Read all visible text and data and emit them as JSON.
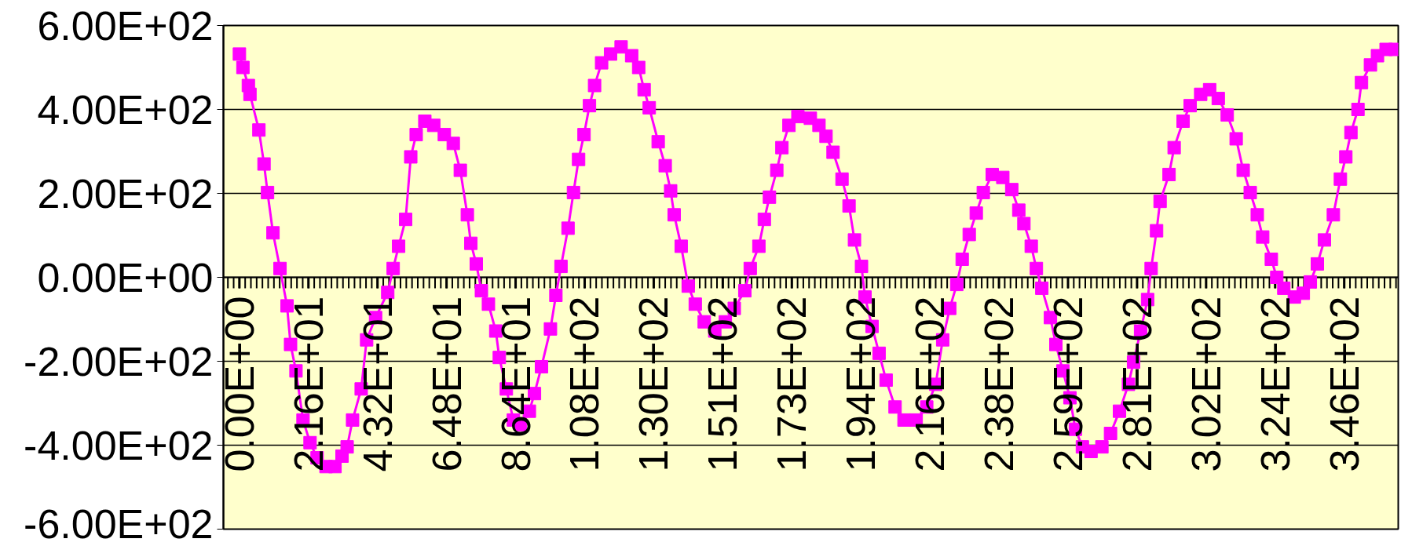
{
  "chart_data": {
    "type": "line",
    "color": "#ff00ff",
    "marker": "square",
    "line_style": "solid",
    "grid": "y",
    "x": [
      0,
      1.1,
      2.8,
      3.3,
      6.1,
      7.7,
      8.8,
      10.5,
      12.7,
      14.9,
      16.0,
      17.7,
      19.9,
      22.1,
      24.3,
      27.1,
      29.9,
      32.1,
      33.7,
      35.4,
      38.1,
      39.8,
      42.6,
      46.4,
      48.1,
      49.8,
      52.0,
      53.6,
      55.3,
      58.0,
      60.8,
      64.1,
      66.9,
      69.1,
      71.3,
      72.4,
      74.1,
      75.7,
      77.9,
      80.2,
      81.3,
      83.5,
      85.7,
      87.9,
      90.7,
      92.3,
      94.5,
      97.3,
      99.0,
      100.6,
      102.8,
      104.5,
      106.1,
      107.8,
      109.5,
      111.1,
      113.3,
      116.1,
      119.4,
      122.7,
      124.9,
      126.6,
      128.2,
      131.0,
      133.2,
      134.9,
      136.0,
      138.2,
      140.4,
      142.6,
      145.4,
      148.7,
      152.0,
      154.8,
      158.1,
      159.8,
      162.5,
      164.2,
      165.8,
      168.1,
      169.7,
      171.9,
      174.7,
      178.6,
      181.3,
      183.5,
      185.7,
      188.5,
      190.7,
      192.4,
      194.6,
      195.7,
      197.9,
      200.1,
      202.3,
      205.1,
      207.9,
      211.7,
      215.0,
      217.8,
      220.0,
      222.2,
      224.4,
      226.1,
      228.3,
      230.5,
      232.7,
      235.5,
      238.8,
      241.6,
      243.8,
      245.4,
      247.7,
      249.3,
      251.0,
      253.7,
      255.4,
      257.6,
      259.8,
      261.5,
      263.7,
      266.4,
      269.8,
      272.5,
      275.3,
      278.1,
      279.7,
      281.9,
      284.1,
      285.2,
      286.9,
      288.0,
      290.8,
      292.4,
      295.2,
      297.4,
      300.7,
      303.5,
      306.2,
      309.0,
      311.8,
      314.0,
      316.2,
      318.4,
      320.1,
      322.8,
      324.5,
      326.7,
      330.0,
      332.8,
      335.0,
      337.2,
      339.4,
      342.2,
      344.4,
      346.1,
      347.7,
      349.9,
      351.0,
      353.8,
      356.0,
      358.7,
      361.5
    ],
    "values": [
      532,
      500,
      457,
      436,
      351,
      270,
      202,
      106,
      21,
      -68,
      -160,
      -223,
      -340,
      -394,
      -430,
      -451,
      -451,
      -426,
      -404,
      -340,
      -266,
      -149,
      -96,
      -36,
      21,
      74,
      138,
      287,
      340,
      372,
      362,
      340,
      319,
      255,
      149,
      81,
      32,
      -32,
      -64,
      -128,
      -191,
      -266,
      -340,
      -351,
      -319,
      -277,
      -213,
      -123,
      -43,
      26,
      117,
      202,
      281,
      340,
      409,
      457,
      511,
      532,
      549,
      528,
      500,
      447,
      404,
      323,
      266,
      206,
      149,
      74,
      -21,
      -64,
      -106,
      -128,
      -106,
      -74,
      -32,
      21,
      74,
      138,
      191,
      255,
      309,
      362,
      383,
      379,
      362,
      336,
      298,
      234,
      170,
      89,
      26,
      -47,
      -117,
      -181,
      -245,
      -309,
      -340,
      -340,
      -309,
      -255,
      -149,
      -74,
      -17,
      43,
      102,
      153,
      202,
      245,
      238,
      209,
      160,
      128,
      74,
      21,
      -26,
      -96,
      -160,
      -223,
      -287,
      -362,
      -404,
      -415,
      -404,
      -372,
      -319,
      -255,
      -202,
      -128,
      -53,
      21,
      111,
      181,
      245,
      309,
      372,
      409,
      436,
      447,
      426,
      387,
      330,
      255,
      202,
      149,
      96,
      43,
      0,
      -26,
      -47,
      -38,
      -11,
      32,
      89,
      149,
      234,
      287,
      345,
      400,
      464,
      506,
      528,
      543,
      543
    ],
    "xlim": [
      -5,
      362.5
    ],
    "xticks": [
      {
        "value": 0,
        "label": "0.00E+00"
      },
      {
        "value": 21.6,
        "label": "2.16E+01"
      },
      {
        "value": 43.2,
        "label": "4.32E+01"
      },
      {
        "value": 64.8,
        "label": "6.48E+01"
      },
      {
        "value": 86.4,
        "label": "8.64E+01"
      },
      {
        "value": 108,
        "label": "1.08E+02"
      },
      {
        "value": 129.6,
        "label": "1.30E+02"
      },
      {
        "value": 151.2,
        "label": "1.51E+02"
      },
      {
        "value": 172.8,
        "label": "1.73E+02"
      },
      {
        "value": 194.4,
        "label": "1.94E+02"
      },
      {
        "value": 216,
        "label": "2.16E+02"
      },
      {
        "value": 237.6,
        "label": "2.38E+02"
      },
      {
        "value": 259.2,
        "label": "2.59E+02"
      },
      {
        "value": 280.8,
        "label": "2.81E+02"
      },
      {
        "value": 302.4,
        "label": "3.02E+02"
      },
      {
        "value": 324,
        "label": "3.24E+02"
      },
      {
        "value": 345.6,
        "label": "3.46E+02"
      }
    ],
    "ylim": [
      -600,
      600
    ],
    "yticks": [
      {
        "value": -600,
        "label": "-6.00E+02"
      },
      {
        "value": -400,
        "label": "-4.00E+02"
      },
      {
        "value": -200,
        "label": "-2.00E+02"
      },
      {
        "value": 0,
        "label": "0.00E+00"
      },
      {
        "value": 200,
        "label": "2.00E+02"
      },
      {
        "value": 400,
        "label": "4.00E+02"
      },
      {
        "value": 600,
        "label": "6.00E+02"
      }
    ]
  }
}
